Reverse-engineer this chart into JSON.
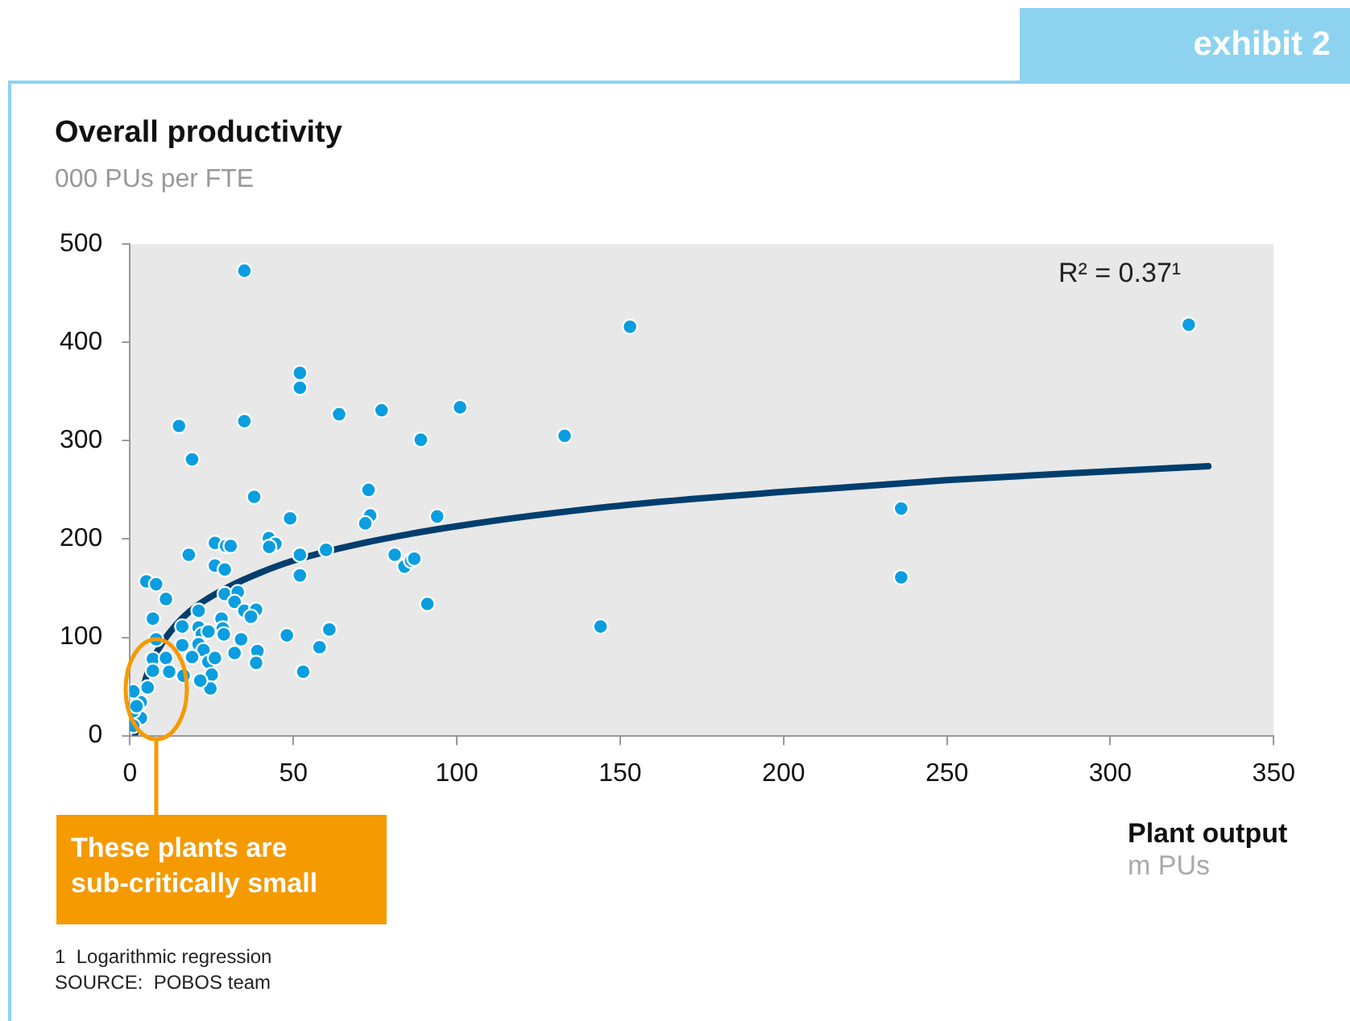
{
  "chart_data": {
    "type": "scatter",
    "title": "Overall productivity",
    "ylabel": "000 PUs per FTE",
    "xlabel": "Plant output",
    "annotations": [
      "R² = 0.37¹",
      "These plants are sub-critically small",
      "1  Logarithmic regression",
      "SOURCE:  POBOS team",
      "exhibit 2",
      "m PUs"
    ],
    "xlim": [
      0,
      350
    ],
    "xticks": [
      0,
      50,
      100,
      150,
      200,
      250,
      300,
      350
    ],
    "ylim": [
      0,
      500
    ],
    "yticks": [
      0,
      100,
      200,
      300,
      400,
      500
    ],
    "grid": false,
    "legend": false,
    "marker": "circle",
    "series": [
      {
        "type": "scatter",
        "color": "#0a9ee0",
        "x": [
          35,
          52,
          52,
          15,
          35,
          64,
          77,
          101,
          89,
          19,
          38,
          73,
          73.5,
          72,
          49,
          94,
          42.5,
          44.5,
          42.6,
          26,
          29.4,
          30.8,
          18,
          52,
          60,
          81,
          84,
          86,
          87,
          26,
          29,
          52,
          91,
          5,
          8,
          11,
          21,
          29,
          33,
          32,
          35,
          38.6,
          37,
          7,
          28,
          28.4,
          28.7,
          16,
          21,
          22,
          24,
          34,
          48,
          61,
          58,
          53,
          16,
          21,
          22.5,
          19,
          32,
          39,
          38.6,
          24,
          26,
          25,
          24.6,
          21.5,
          16.4,
          8,
          7,
          11,
          7,
          12,
          5.4,
          2,
          3.3,
          3.3,
          1,
          1,
          1,
          2,
          153,
          133,
          144,
          236,
          236,
          324
        ],
        "values": [
          473,
          369,
          354,
          315,
          320,
          327,
          331,
          334,
          301,
          281,
          243,
          250,
          224,
          216,
          221,
          223,
          201,
          195,
          192,
          196,
          193,
          193,
          184,
          184,
          189,
          184,
          172,
          178,
          180,
          173,
          169,
          163,
          134,
          157,
          154,
          139,
          127,
          144,
          146,
          136,
          127,
          128,
          121,
          119,
          119,
          109,
          103,
          111,
          110,
          103,
          106,
          98,
          102,
          108,
          90,
          65,
          92,
          93,
          87,
          80,
          84,
          86,
          74,
          75,
          79,
          62,
          48,
          56,
          61,
          98,
          78,
          79,
          66,
          65,
          49,
          39,
          34,
          18,
          25,
          10,
          45,
          30,
          416,
          305,
          111,
          231,
          161,
          418
        ]
      },
      {
        "type": "line",
        "color": "#003e6e",
        "line_style": "solid",
        "marker": "none",
        "x": [
          1.6,
          2,
          3,
          5,
          7,
          10,
          15,
          20,
          30,
          40,
          50,
          70,
          100,
          150,
          200,
          250,
          300,
          330
        ],
        "values": [
          2,
          13,
          34,
          60,
          77,
          95,
          116,
          131,
          151,
          166,
          178,
          195,
          213,
          234,
          248,
          260,
          269,
          274
        ]
      }
    ]
  }
}
